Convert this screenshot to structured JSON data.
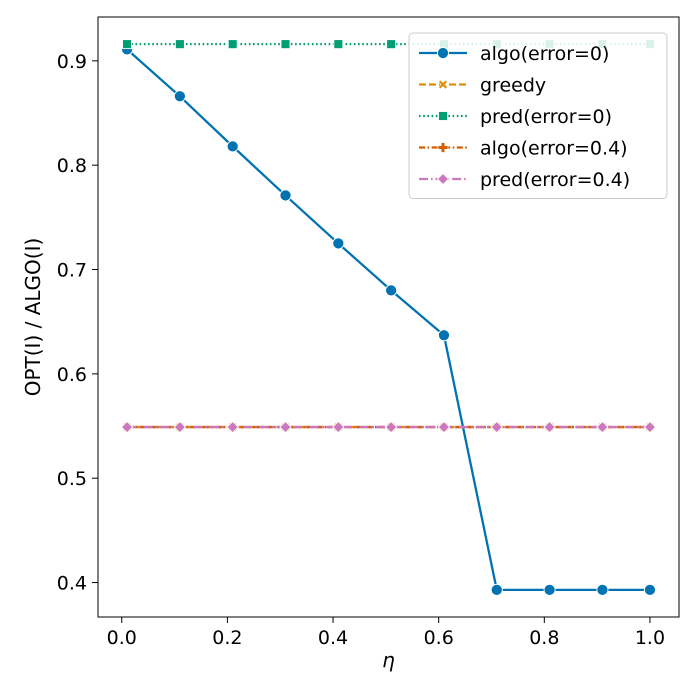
{
  "chart_data": {
    "type": "line",
    "xlabel": "η",
    "ylabel": "OPT(I) / ALGO(I)",
    "xlim": [
      -0.045,
      1.055
    ],
    "ylim": [
      0.367,
      0.942
    ],
    "xticks": [
      0.0,
      0.2,
      0.4,
      0.6,
      0.8,
      1.0
    ],
    "xtick_labels": [
      "0.0",
      "0.2",
      "0.4",
      "0.6",
      "0.8",
      "1.0"
    ],
    "yticks": [
      0.4,
      0.5,
      0.6,
      0.7,
      0.8,
      0.9
    ],
    "ytick_labels": [
      "0.4",
      "0.5",
      "0.6",
      "0.7",
      "0.8",
      "0.9"
    ],
    "x": [
      0.01,
      0.11,
      0.21,
      0.31,
      0.41,
      0.51,
      0.61,
      0.71,
      0.81,
      0.91,
      1.0
    ],
    "legend_position": "top-right",
    "grid": false,
    "series": [
      {
        "name": "algo(error=0)",
        "color": "#0173b2",
        "dash": "solid",
        "marker": "circle",
        "values": [
          0.911,
          0.866,
          0.818,
          0.771,
          0.725,
          0.68,
          0.637,
          0.393,
          0.393,
          0.393,
          0.393
        ]
      },
      {
        "name": "greedy",
        "color": "#de8f05",
        "dash": "dashed",
        "marker": "x",
        "values": [
          0.549,
          0.549,
          0.549,
          0.549,
          0.549,
          0.549,
          0.549,
          0.549,
          0.549,
          0.549,
          0.549
        ]
      },
      {
        "name": "pred(error=0)",
        "color": "#029e73",
        "dash": "dotted",
        "marker": "square",
        "values": [
          0.916,
          0.916,
          0.916,
          0.916,
          0.916,
          0.916,
          0.916,
          0.916,
          0.916,
          0.916,
          0.916
        ]
      },
      {
        "name": "algo(error=0.4)",
        "color": "#d55e00",
        "dash": "dashdot",
        "marker": "plus",
        "values": [
          0.549,
          0.549,
          0.549,
          0.549,
          0.549,
          0.549,
          0.549,
          0.549,
          0.549,
          0.549,
          0.549
        ]
      },
      {
        "name": "pred(error=0.4)",
        "color": "#cc78bc",
        "dash": "longdashdot",
        "marker": "diamond",
        "values": [
          0.549,
          0.549,
          0.549,
          0.549,
          0.549,
          0.549,
          0.549,
          0.549,
          0.549,
          0.549,
          0.549
        ]
      }
    ]
  }
}
